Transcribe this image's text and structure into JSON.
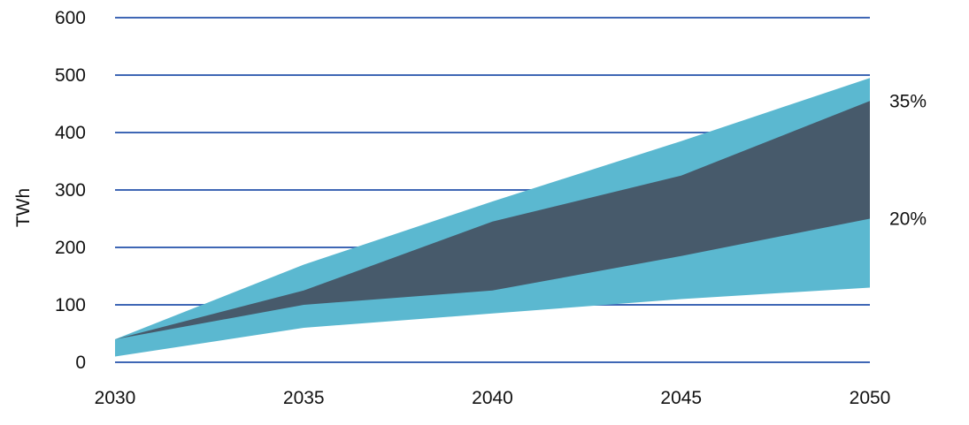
{
  "chart_data": {
    "type": "area",
    "title": "",
    "xlabel": "",
    "ylabel": "TWh",
    "x": [
      2030,
      2035,
      2040,
      2045,
      2050
    ],
    "xticks": [
      "2030",
      "2035",
      "2040",
      "2045",
      "2050"
    ],
    "yticks": [
      "0",
      "100",
      "200",
      "300",
      "400",
      "500",
      "600"
    ],
    "ylim": [
      0,
      600
    ],
    "grid": "horizontal",
    "colors": {
      "outer_band": "#5BB8D0",
      "inner_band": "#475A6B",
      "grid": "#3F67B5"
    },
    "bands": [
      {
        "lower": [
          10,
          60,
          85,
          110,
          130
        ],
        "upper": [
          40,
          170,
          280,
          385,
          495
        ]
      },
      {
        "lower": [
          40,
          100,
          125,
          185,
          250
        ],
        "upper": [
          40,
          125,
          245,
          325,
          455
        ]
      }
    ],
    "annotations": [
      {
        "text": "35%",
        "x": 2050,
        "y": 455
      },
      {
        "text": "20%",
        "x": 2050,
        "y": 250
      }
    ]
  }
}
